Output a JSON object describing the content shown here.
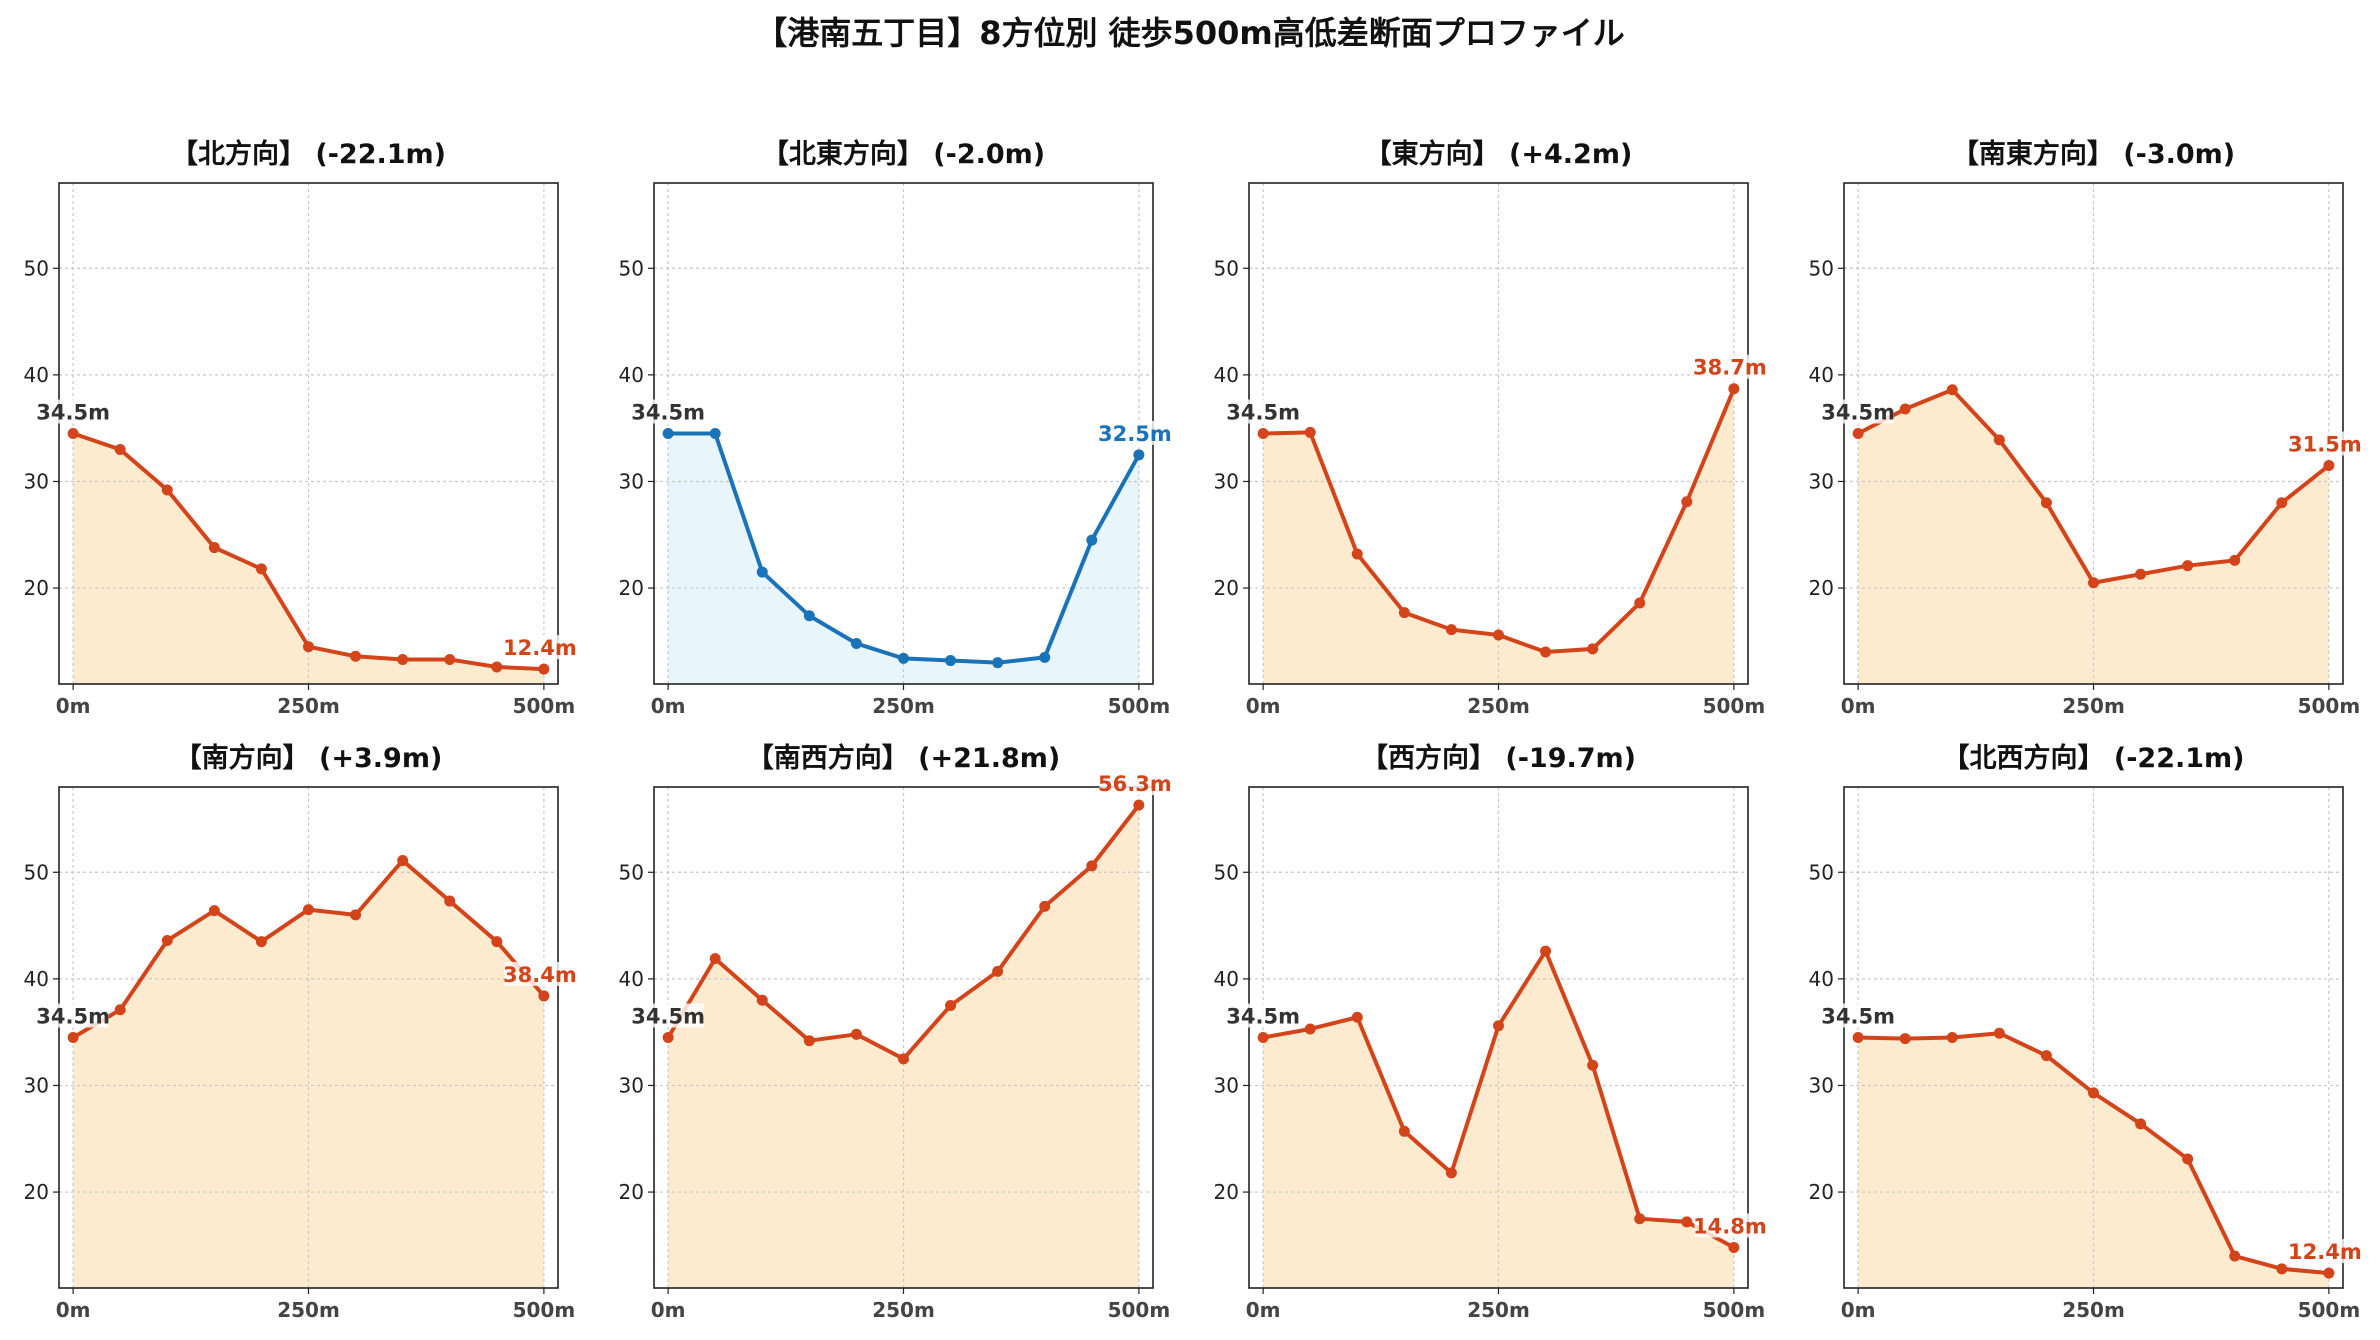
{
  "title": "【港南五丁目】8方位別 徒歩500m高低差断面プロファイル",
  "colors": {
    "down_line": "#d4441a",
    "down_fill": "#fdebd0",
    "up_line": "#1a73b8",
    "up_fill": "#e8f5fb",
    "grid": "#c8c8c8",
    "start_label": "#333333"
  },
  "chart_data": [
    {
      "type": "line",
      "title": "【北方向】 (-22.1m)",
      "variant": "orange",
      "x": [
        0,
        50,
        100,
        150,
        200,
        250,
        300,
        350,
        400,
        450,
        500
      ],
      "values": [
        34.5,
        33.0,
        29.2,
        23.8,
        21.8,
        14.5,
        13.6,
        13.3,
        13.3,
        12.6,
        12.4
      ],
      "start_label": "34.5m",
      "end_label": "12.4m",
      "x_ticks": [
        "0m",
        "250m",
        "500m"
      ],
      "y_ticks": [
        "20",
        "30",
        "40",
        "50"
      ],
      "ylim": [
        11,
        58
      ],
      "xlim": [
        -15,
        515
      ],
      "grid": true
    },
    {
      "type": "line",
      "title": "【北東方向】 (-2.0m)",
      "variant": "blue",
      "x": [
        0,
        50,
        100,
        150,
        200,
        250,
        300,
        350,
        400,
        450,
        500
      ],
      "values": [
        34.5,
        34.5,
        21.5,
        17.4,
        14.8,
        13.4,
        13.2,
        13.0,
        13.5,
        24.5,
        32.5
      ],
      "start_label": "34.5m",
      "end_label": "32.5m",
      "x_ticks": [
        "0m",
        "250m",
        "500m"
      ],
      "y_ticks": [
        "20",
        "30",
        "40",
        "50"
      ],
      "ylim": [
        11,
        58
      ],
      "xlim": [
        -15,
        515
      ],
      "grid": true
    },
    {
      "type": "line",
      "title": "【東方向】 (+4.2m)",
      "variant": "orange",
      "x": [
        0,
        50,
        100,
        150,
        200,
        250,
        300,
        350,
        400,
        450,
        500
      ],
      "values": [
        34.5,
        34.6,
        23.2,
        17.7,
        16.1,
        15.6,
        14.0,
        14.3,
        18.6,
        28.1,
        38.7
      ],
      "start_label": "34.5m",
      "end_label": "38.7m",
      "x_ticks": [
        "0m",
        "250m",
        "500m"
      ],
      "y_ticks": [
        "20",
        "30",
        "40",
        "50"
      ],
      "ylim": [
        11,
        58
      ],
      "xlim": [
        -15,
        515
      ],
      "grid": true
    },
    {
      "type": "line",
      "title": "【南東方向】 (-3.0m)",
      "variant": "orange",
      "x": [
        0,
        50,
        100,
        150,
        200,
        250,
        300,
        350,
        400,
        450,
        500
      ],
      "values": [
        34.5,
        36.8,
        38.6,
        33.9,
        28.0,
        20.5,
        21.3,
        22.1,
        22.6,
        28.0,
        31.5
      ],
      "start_label": "34.5m",
      "end_label": "31.5m",
      "x_ticks": [
        "0m",
        "250m",
        "500m"
      ],
      "y_ticks": [
        "20",
        "30",
        "40",
        "50"
      ],
      "ylim": [
        11,
        58
      ],
      "xlim": [
        -15,
        515
      ],
      "grid": true
    },
    {
      "type": "line",
      "title": "【南方向】 (+3.9m)",
      "variant": "orange",
      "x": [
        0,
        50,
        100,
        150,
        200,
        250,
        300,
        350,
        400,
        450,
        500
      ],
      "values": [
        34.5,
        37.1,
        43.6,
        46.4,
        43.5,
        46.5,
        46.0,
        51.1,
        47.3,
        43.5,
        38.4
      ],
      "start_label": "34.5m",
      "end_label": "38.4m",
      "x_ticks": [
        "0m",
        "250m",
        "500m"
      ],
      "y_ticks": [
        "20",
        "30",
        "40",
        "50"
      ],
      "ylim": [
        11,
        58
      ],
      "xlim": [
        -15,
        515
      ],
      "grid": true
    },
    {
      "type": "line",
      "title": "【南西方向】 (+21.8m)",
      "variant": "orange",
      "x": [
        0,
        50,
        100,
        150,
        200,
        250,
        300,
        350,
        400,
        450,
        500
      ],
      "values": [
        34.5,
        41.9,
        38.0,
        34.2,
        34.8,
        32.5,
        37.5,
        40.7,
        46.8,
        50.6,
        56.3
      ],
      "start_label": "34.5m",
      "end_label": "56.3m",
      "x_ticks": [
        "0m",
        "250m",
        "500m"
      ],
      "y_ticks": [
        "20",
        "30",
        "40",
        "50"
      ],
      "ylim": [
        11,
        58
      ],
      "xlim": [
        -15,
        515
      ],
      "grid": true
    },
    {
      "type": "line",
      "title": "【西方向】 (-19.7m)",
      "variant": "orange",
      "x": [
        0,
        50,
        100,
        150,
        200,
        250,
        300,
        350,
        400,
        450,
        500
      ],
      "values": [
        34.5,
        35.3,
        36.4,
        25.7,
        21.8,
        35.6,
        42.6,
        31.9,
        17.5,
        17.2,
        14.8
      ],
      "start_label": "34.5m",
      "end_label": "14.8m",
      "x_ticks": [
        "0m",
        "250m",
        "500m"
      ],
      "y_ticks": [
        "20",
        "30",
        "40",
        "50"
      ],
      "ylim": [
        11,
        58
      ],
      "xlim": [
        -15,
        515
      ],
      "grid": true
    },
    {
      "type": "line",
      "title": "【北西方向】 (-22.1m)",
      "variant": "orange",
      "x": [
        0,
        50,
        100,
        150,
        200,
        250,
        300,
        350,
        400,
        450,
        500
      ],
      "values": [
        34.5,
        34.4,
        34.5,
        34.9,
        32.8,
        29.3,
        26.4,
        23.1,
        14.0,
        12.8,
        12.4
      ],
      "start_label": "34.5m",
      "end_label": "12.4m",
      "x_ticks": [
        "0m",
        "250m",
        "500m"
      ],
      "y_ticks": [
        "20",
        "30",
        "40",
        "50"
      ],
      "ylim": [
        11,
        58
      ],
      "xlim": [
        -15,
        515
      ],
      "grid": true
    }
  ]
}
